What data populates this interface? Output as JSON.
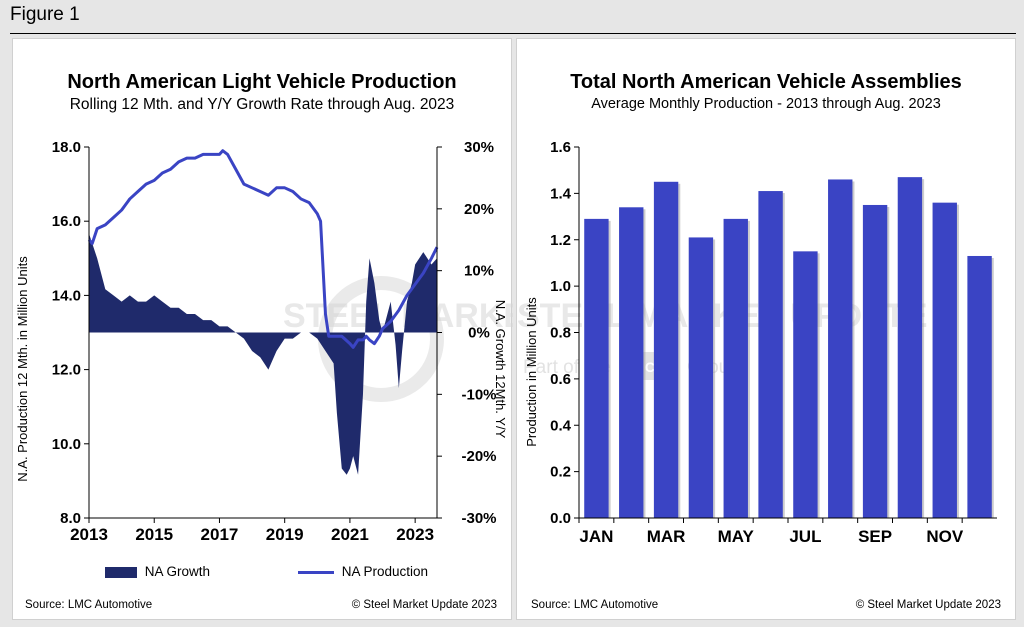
{
  "figure_label": "Figure 1",
  "left_panel": {
    "source": "Source: LMC Automotive",
    "copyright": "© Steel Market Update 2023",
    "legend": [
      {
        "label": "NA Growth",
        "color": "#1f2a6b",
        "kind": "area"
      },
      {
        "label": "NA Production",
        "color": "#3a44c4",
        "kind": "line"
      }
    ]
  },
  "right_panel": {
    "source": "Source: LMC Automotive",
    "copyright": "© Steel Market Update 2023"
  },
  "watermark": {
    "text": "STEEL MARKET UPDATE",
    "subtext_left": "Part of the",
    "subtext_badge": "CRU",
    "subtext_right": "Group"
  },
  "chart_data": [
    {
      "type": "line",
      "title": "North American Light Vehicle Production",
      "subtitle": "Rolling 12 Mth. and Y/Y Growth Rate through Aug. 2023",
      "ylabel": "N.A. Production 12 Mth. in Million Units",
      "y2label": "N.A. Growth 12Mth. Y/Y",
      "ylim": [
        8.0,
        18.0
      ],
      "y2lim": [
        -30,
        30
      ],
      "xlim": [
        2013,
        2023.67
      ],
      "y_ticks": [
        "8.0",
        "10.0",
        "12.0",
        "14.0",
        "16.0",
        "18.0"
      ],
      "y_tick_values": [
        8,
        10,
        12,
        14,
        16,
        18
      ],
      "y2_ticks": [
        "-30%",
        "-20%",
        "-10%",
        "0%",
        "10%",
        "20%",
        "30%"
      ],
      "y2_tick_values": [
        -30,
        -20,
        -10,
        0,
        10,
        20,
        30
      ],
      "x_ticks": [
        "2013",
        "2015",
        "2017",
        "2019",
        "2021",
        "2023"
      ],
      "x_tick_values": [
        2013,
        2015,
        2017,
        2019,
        2021,
        2023
      ],
      "grid": false,
      "legend_position": "bottom",
      "series": [
        {
          "name": "NA Growth",
          "type": "area",
          "axis": "right",
          "color": "#1f2a6b",
          "x": [
            2013.0,
            2013.25,
            2013.5,
            2013.75,
            2014.0,
            2014.25,
            2014.5,
            2014.75,
            2015.0,
            2015.25,
            2015.5,
            2015.75,
            2016.0,
            2016.25,
            2016.5,
            2016.75,
            2017.0,
            2017.25,
            2017.5,
            2017.75,
            2018.0,
            2018.25,
            2018.5,
            2018.75,
            2019.0,
            2019.25,
            2019.5,
            2019.75,
            2020.0,
            2020.25,
            2020.5,
            2020.6,
            2020.75,
            2020.9,
            2021.0,
            2021.1,
            2021.25,
            2021.4,
            2021.5,
            2021.6,
            2021.75,
            2021.9,
            2022.0,
            2022.1,
            2022.25,
            2022.4,
            2022.5,
            2022.6,
            2022.75,
            2022.9,
            2023.0,
            2023.25,
            2023.5,
            2023.67
          ],
          "values": [
            16,
            12,
            7,
            6,
            5,
            6,
            5,
            5,
            6,
            5,
            4,
            4,
            3,
            3,
            2,
            2,
            1,
            1,
            0,
            -1,
            -3,
            -4,
            -6,
            -3,
            -1,
            -1,
            0,
            0,
            -1,
            -3,
            -5,
            -13,
            -22,
            -23,
            -22,
            -20,
            -23,
            -10,
            5,
            12,
            8,
            2,
            0,
            2,
            5,
            -2,
            -9,
            -3,
            5,
            8,
            11,
            13,
            11,
            12
          ]
        },
        {
          "name": "NA Production",
          "type": "line",
          "axis": "left",
          "color": "#3a44c4",
          "x": [
            2013.0,
            2013.1,
            2013.25,
            2013.5,
            2013.75,
            2014.0,
            2014.25,
            2014.5,
            2014.75,
            2015.0,
            2015.25,
            2015.5,
            2015.75,
            2016.0,
            2016.25,
            2016.5,
            2016.75,
            2017.0,
            2017.1,
            2017.25,
            2017.5,
            2017.75,
            2018.0,
            2018.25,
            2018.5,
            2018.75,
            2019.0,
            2019.25,
            2019.5,
            2019.75,
            2020.0,
            2020.1,
            2020.25,
            2020.35,
            2020.5,
            2020.75,
            2021.0,
            2021.1,
            2021.25,
            2021.4,
            2021.5,
            2021.6,
            2021.75,
            2021.9,
            2022.0,
            2022.25,
            2022.5,
            2022.75,
            2023.0,
            2023.25,
            2023.5,
            2023.67
          ],
          "values": [
            15.5,
            15.4,
            15.8,
            15.9,
            16.1,
            16.3,
            16.6,
            16.8,
            17.0,
            17.1,
            17.3,
            17.4,
            17.6,
            17.7,
            17.7,
            17.8,
            17.8,
            17.8,
            17.9,
            17.8,
            17.4,
            17.0,
            16.9,
            16.8,
            16.7,
            16.9,
            16.9,
            16.8,
            16.6,
            16.5,
            16.2,
            16.0,
            13.5,
            12.9,
            12.9,
            12.9,
            12.7,
            12.6,
            12.8,
            12.8,
            12.9,
            12.8,
            12.7,
            12.9,
            13.1,
            13.3,
            13.6,
            14.0,
            14.3,
            14.6,
            15.0,
            15.3
          ]
        }
      ]
    },
    {
      "type": "bar",
      "title": "Total North American Vehicle Assemblies",
      "subtitle": "Average Monthly Production - 2013 through Aug. 2023",
      "ylabel": "Production in Million Units",
      "xlabel": "",
      "ylim": [
        0.0,
        1.6
      ],
      "y_ticks": [
        "0.0",
        "0.2",
        "0.4",
        "0.6",
        "0.8",
        "1.0",
        "1.2",
        "1.4",
        "1.6"
      ],
      "y_tick_values": [
        0,
        0.2,
        0.4,
        0.6,
        0.8,
        1.0,
        1.2,
        1.4,
        1.6
      ],
      "grid": false,
      "color": "#3a44c4",
      "categories": [
        "JAN",
        "FEB",
        "MAR",
        "APR",
        "MAY",
        "JUN",
        "JUL",
        "AUG",
        "SEP",
        "OCT",
        "NOV",
        "DEC"
      ],
      "category_labels_shown": [
        "JAN",
        "",
        "MAR",
        "",
        "MAY",
        "",
        "JUL",
        "",
        "SEP",
        "",
        "NOV",
        ""
      ],
      "values": [
        1.29,
        1.34,
        1.45,
        1.21,
        1.29,
        1.41,
        1.15,
        1.46,
        1.35,
        1.47,
        1.36,
        1.13
      ]
    }
  ]
}
